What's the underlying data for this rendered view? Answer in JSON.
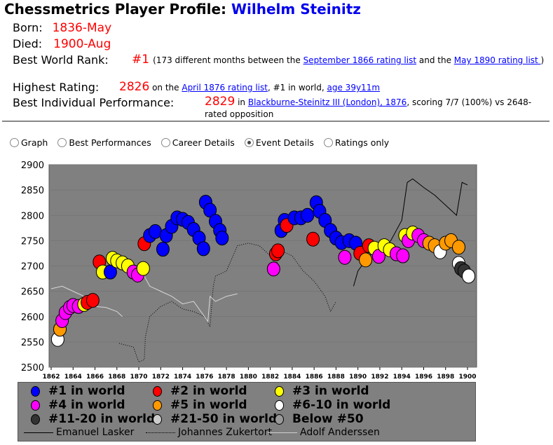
{
  "header": {
    "title_prefix": "Chessmetrics Player Profile: ",
    "player_name": "Wilhelm Steinitz"
  },
  "profile": {
    "born_label": "Born:",
    "born": "1836-May",
    "died_label": "Died:",
    "died": "1900-Aug",
    "best_rank_label": "Best World Rank:",
    "best_rank": "#1",
    "best_rank_text1": "(173 different months between the ",
    "best_rank_link1": "September 1866 rating list",
    "best_rank_text2": " and the ",
    "best_rank_link2": "May 1890 rating list ",
    "best_rank_text3": ")",
    "highest_label": "Highest Rating:",
    "highest": "2826",
    "highest_text1": " on the ",
    "highest_link": "April 1876 rating list",
    "highest_text2": ", #1 in world, ",
    "highest_age": "age 39y11m",
    "perf_label": "Best Individual Performance:",
    "perf": "2829",
    "perf_text1": " in ",
    "perf_link": "Blackburne-Steinitz III (London), 1876",
    "perf_text2": ", scoring 7/7 (100%) vs 2648-rated opposition"
  },
  "view_options": [
    {
      "label": "Graph",
      "selected": false
    },
    {
      "label": "Best Performances",
      "selected": false
    },
    {
      "label": "Career Details",
      "selected": false
    },
    {
      "label": "Event Details",
      "selected": true
    },
    {
      "label": "Ratings only",
      "selected": false
    }
  ],
  "legend": {
    "ranks": [
      {
        "key": "1",
        "label": "#1 in world",
        "color": "#0000ff"
      },
      {
        "key": "2",
        "label": "#2 in world",
        "color": "#ff0000"
      },
      {
        "key": "3",
        "label": "#3 in world",
        "color": "#ffff00"
      },
      {
        "key": "4",
        "label": "#4 in world",
        "color": "#ff00ff"
      },
      {
        "key": "5",
        "label": "#5 in world",
        "color": "#ff9900"
      },
      {
        "key": "w",
        "label": "#6-10 in world",
        "color": "#ffffff"
      },
      {
        "key": "d",
        "label": "#11-20 in world",
        "color": "#333333"
      },
      {
        "key": "l",
        "label": "#21-50 in world",
        "color": "#cccccc"
      },
      {
        "key": "g",
        "label": "Below #50",
        "color": "#999999"
      }
    ],
    "lines": [
      {
        "label": "Emanuel Lasker",
        "style": "solid",
        "color": "#000000"
      },
      {
        "label": "Johannes Zukertort",
        "style": "dotted",
        "color": "#000000"
      },
      {
        "label": "Adolf Anderssen",
        "style": "solid",
        "color": "#d0d0d0"
      }
    ]
  },
  "chart_data": {
    "type": "scatter",
    "xlim": [
      1862,
      1901
    ],
    "ylim": [
      2500,
      2900
    ],
    "xticks": [
      1862,
      1864,
      1866,
      1868,
      1870,
      1872,
      1874,
      1876,
      1878,
      1880,
      1882,
      1884,
      1886,
      1888,
      1890,
      1892,
      1894,
      1896,
      1898,
      1900
    ],
    "yticks": [
      2500,
      2550,
      2600,
      2650,
      2700,
      2750,
      2800,
      2850,
      2900
    ],
    "colors": {
      "1": "#0000ff",
      "2": "#ff0000",
      "3": "#ffff00",
      "4": "#ff00ff",
      "5": "#ff9900",
      "w": "#ffffff",
      "d": "#333333",
      "l": "#cccccc",
      "g": "#999999"
    },
    "points": [
      [
        1862.6,
        2555,
        "w"
      ],
      [
        1862.8,
        2575,
        "5"
      ],
      [
        1863.0,
        2592,
        "4"
      ],
      [
        1863.3,
        2608,
        "4"
      ],
      [
        1863.7,
        2618,
        "4"
      ],
      [
        1864.0,
        2622,
        "4"
      ],
      [
        1864.5,
        2620,
        "4"
      ],
      [
        1865.0,
        2624,
        "3"
      ],
      [
        1865.3,
        2628,
        "2"
      ],
      [
        1865.8,
        2632,
        "2"
      ],
      [
        1866.4,
        2708,
        "2"
      ],
      [
        1866.7,
        2688,
        "3"
      ],
      [
        1867.4,
        2688,
        "1"
      ],
      [
        1867.6,
        2715,
        "3"
      ],
      [
        1868.0,
        2710,
        "3"
      ],
      [
        1868.5,
        2706,
        "3"
      ],
      [
        1869.0,
        2700,
        "3"
      ],
      [
        1869.5,
        2688,
        "4"
      ],
      [
        1869.9,
        2682,
        "4"
      ],
      [
        1870.4,
        2695,
        "3"
      ],
      [
        1870.5,
        2744,
        "2"
      ],
      [
        1871.0,
        2760,
        "1"
      ],
      [
        1871.5,
        2768,
        "1"
      ],
      [
        1872.2,
        2733,
        "1"
      ],
      [
        1872.5,
        2760,
        "1"
      ],
      [
        1873.0,
        2778,
        "1"
      ],
      [
        1873.5,
        2795,
        "1"
      ],
      [
        1874.0,
        2792,
        "1"
      ],
      [
        1874.5,
        2786,
        "1"
      ],
      [
        1875.0,
        2772,
        "1"
      ],
      [
        1875.5,
        2755,
        "1"
      ],
      [
        1875.9,
        2734,
        "1"
      ],
      [
        1876.1,
        2826,
        "1"
      ],
      [
        1876.5,
        2810,
        "1"
      ],
      [
        1877.0,
        2788,
        "1"
      ],
      [
        1877.4,
        2770,
        "1"
      ],
      [
        1877.6,
        2755,
        "1"
      ],
      [
        1882.3,
        2694,
        "4"
      ],
      [
        1882.5,
        2724,
        "2"
      ],
      [
        1882.7,
        2730,
        "2"
      ],
      [
        1883.0,
        2770,
        "1"
      ],
      [
        1883.3,
        2790,
        "1"
      ],
      [
        1883.5,
        2780,
        "2"
      ],
      [
        1884.2,
        2795,
        "1"
      ],
      [
        1884.8,
        2795,
        "1"
      ],
      [
        1885.4,
        2800,
        "1"
      ],
      [
        1885.9,
        2753,
        "2"
      ],
      [
        1886.2,
        2825,
        "1"
      ],
      [
        1886.5,
        2808,
        "1"
      ],
      [
        1887.0,
        2790,
        "1"
      ],
      [
        1887.5,
        2770,
        "1"
      ],
      [
        1888.0,
        2755,
        "1"
      ],
      [
        1888.5,
        2746,
        "1"
      ],
      [
        1888.8,
        2717,
        "4"
      ],
      [
        1889.2,
        2750,
        "1"
      ],
      [
        1889.8,
        2745,
        "1"
      ],
      [
        1890.2,
        2725,
        "2"
      ],
      [
        1890.7,
        2712,
        "5"
      ],
      [
        1891.0,
        2740,
        "2"
      ],
      [
        1891.5,
        2735,
        "3"
      ],
      [
        1891.9,
        2719,
        "4"
      ],
      [
        1892.4,
        2740,
        "3"
      ],
      [
        1892.9,
        2732,
        "3"
      ],
      [
        1893.5,
        2724,
        "4"
      ],
      [
        1894.1,
        2720,
        "4"
      ],
      [
        1894.3,
        2760,
        "3"
      ],
      [
        1894.6,
        2750,
        "4"
      ],
      [
        1895.0,
        2765,
        "3"
      ],
      [
        1895.5,
        2760,
        "4"
      ],
      [
        1896.0,
        2750,
        "4"
      ],
      [
        1896.5,
        2745,
        "5"
      ],
      [
        1897.0,
        2740,
        "5"
      ],
      [
        1897.5,
        2728,
        "w"
      ],
      [
        1898.0,
        2745,
        "5"
      ],
      [
        1898.5,
        2750,
        "5"
      ],
      [
        1899.2,
        2737,
        "5"
      ],
      [
        1899.2,
        2705,
        "w"
      ],
      [
        1899.4,
        2695,
        "d"
      ],
      [
        1899.7,
        2690,
        "d"
      ],
      [
        1900.1,
        2680,
        "w"
      ]
    ],
    "series": [
      {
        "name": "Emanuel Lasker",
        "style": "solid",
        "color": "#000000",
        "points": [
          [
            1889.6,
            2660
          ],
          [
            1890,
            2690
          ],
          [
            1891,
            2720
          ],
          [
            1892,
            2730
          ],
          [
            1893,
            2750
          ],
          [
            1894,
            2790
          ],
          [
            1894.5,
            2865
          ],
          [
            1895,
            2872
          ],
          [
            1896,
            2855
          ],
          [
            1897,
            2840
          ],
          [
            1898,
            2820
          ],
          [
            1899,
            2800
          ],
          [
            1899.5,
            2865
          ],
          [
            1900,
            2860
          ]
        ]
      },
      {
        "name": "Johannes Zukertort",
        "style": "dotted",
        "color": "#000000",
        "points": [
          [
            1868.2,
            2547
          ],
          [
            1869.5,
            2540
          ],
          [
            1870,
            2510
          ],
          [
            1870.5,
            2515
          ],
          [
            1870.6,
            2560
          ],
          [
            1871,
            2600
          ],
          [
            1872,
            2620
          ],
          [
            1873,
            2630
          ],
          [
            1874,
            2615
          ],
          [
            1875,
            2610
          ],
          [
            1876,
            2600
          ],
          [
            1876.5,
            2580
          ],
          [
            1876.8,
            2660
          ],
          [
            1877,
            2680
          ],
          [
            1878,
            2690
          ],
          [
            1879,
            2740
          ],
          [
            1880,
            2745
          ],
          [
            1881,
            2740
          ],
          [
            1882,
            2720
          ],
          [
            1882.5,
            2700
          ],
          [
            1883,
            2730
          ],
          [
            1884,
            2720
          ],
          [
            1885,
            2690
          ],
          [
            1886,
            2670
          ],
          [
            1887,
            2640
          ],
          [
            1887.5,
            2610
          ],
          [
            1888,
            2630
          ]
        ]
      },
      {
        "name": "Adolf Anderssen",
        "style": "solid",
        "color": "#d8d8d8",
        "points": [
          [
            1862,
            2655
          ],
          [
            1863,
            2660
          ],
          [
            1864,
            2650
          ],
          [
            1865,
            2640
          ],
          [
            1866,
            2620
          ],
          [
            1867,
            2618
          ],
          [
            1868,
            2610
          ],
          [
            1868.5,
            2600
          ],
          [
            null,
            null
          ],
          [
            1870.5,
            2680
          ],
          [
            1871,
            2660
          ],
          [
            1872,
            2650
          ],
          [
            1873,
            2640
          ],
          [
            1874,
            2625
          ],
          [
            1875,
            2630
          ],
          [
            1876,
            2600
          ],
          [
            1876.3,
            2590
          ],
          [
            1876.5,
            2640
          ],
          [
            1877,
            2630
          ],
          [
            1878,
            2640
          ],
          [
            1879,
            2645
          ]
        ]
      }
    ]
  }
}
